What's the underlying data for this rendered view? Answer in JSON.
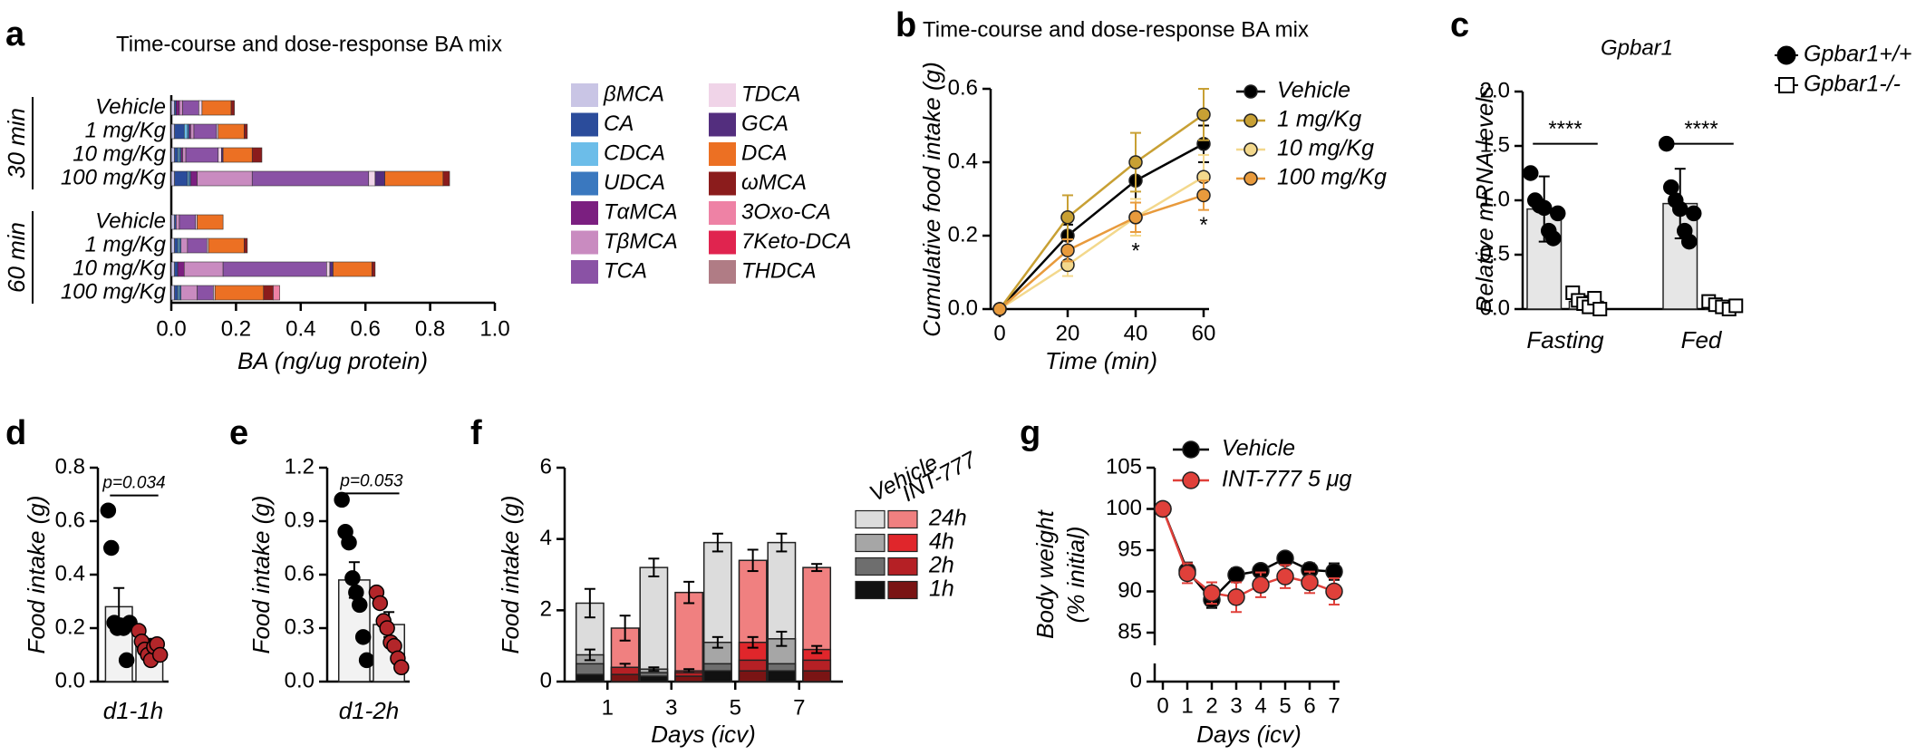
{
  "chart_data": [
    {
      "panel": "a",
      "type": "barh",
      "title": "Time-course and dose-response BA mix",
      "categories": [
        "Vehicle",
        "1 mg/Kg",
        "10 mg/Kg",
        "100 mg/Kg",
        "Vehicle",
        "1 mg/Kg",
        "10 mg/Kg",
        "100 mg/Kg"
      ],
      "groups": [
        "30 min",
        "60 min"
      ],
      "stacked": true,
      "xlabel": "BA (ng/ug protein)",
      "xlim": [
        0,
        1
      ],
      "xticks": [
        {
          "value": 0,
          "label": "0.0"
        },
        0.2,
        0.4,
        0.6,
        0.8,
        {
          "value": 1,
          "label": "1.0"
        }
      ],
      "series": [
        {
          "name": "βMCA",
          "color": "#c9c5e5",
          "values": [
            0.01,
            0.01,
            0.01,
            0.01,
            0.01,
            0.01,
            0.01,
            0.01
          ]
        },
        {
          "name": "CA",
          "color": "#2b4c9b",
          "values": [
            0.005,
            0.03,
            0.01,
            0.04,
            0.005,
            0.01,
            0.01,
            0.01
          ]
        },
        {
          "name": "CDCA",
          "color": "#6cbde9",
          "values": [
            0,
            0.01,
            0.005,
            0.005,
            0,
            0.005,
            0,
            0.005
          ]
        },
        {
          "name": "UDCA",
          "color": "#3a78bf",
          "values": [
            0,
            0.005,
            0.005,
            0.005,
            0,
            0.005,
            0,
            0.005
          ]
        },
        {
          "name": "TαMCA",
          "color": "#7b1f80",
          "values": [
            0.01,
            0.005,
            0.005,
            0.02,
            0,
            0,
            0.02,
            0
          ]
        },
        {
          "name": "TβMCA",
          "color": "#c98bc0",
          "values": [
            0.01,
            0.01,
            0.01,
            0.17,
            0.01,
            0.02,
            0.12,
            0.05
          ]
        },
        {
          "name": "TCA",
          "color": "#8a52a5",
          "values": [
            0.05,
            0.07,
            0.1,
            0.36,
            0.05,
            0.06,
            0.32,
            0.05
          ]
        },
        {
          "name": "TDCA",
          "color": "#f0d4e8",
          "values": [
            0.01,
            0.005,
            0.01,
            0.02,
            0.005,
            0.005,
            0.01,
            0.005
          ]
        },
        {
          "name": "GCA",
          "color": "#532e7e",
          "values": [
            0,
            0,
            0.005,
            0.03,
            0,
            0,
            0.01,
            0
          ]
        },
        {
          "name": "DCA",
          "color": "#ec7023",
          "values": [
            0.09,
            0.08,
            0.09,
            0.18,
            0.08,
            0.11,
            0.12,
            0.15
          ]
        },
        {
          "name": "ωMCA",
          "color": "#8b1c1c",
          "values": [
            0.01,
            0.01,
            0.03,
            0.02,
            0,
            0.01,
            0.01,
            0.03
          ]
        },
        {
          "name": "3Oxo-CA",
          "color": "#ee82a5",
          "values": [
            0,
            0,
            0,
            0,
            0,
            0,
            0,
            0.02
          ]
        },
        {
          "name": "7Keto-DCA",
          "color": "#e0244f",
          "values": [
            0,
            0,
            0,
            0,
            0,
            0,
            0,
            0
          ]
        },
        {
          "name": "THDCA",
          "color": "#b07c85",
          "values": [
            0,
            0,
            0,
            0,
            0,
            0,
            0,
            0
          ]
        }
      ]
    },
    {
      "panel": "b",
      "type": "line",
      "title": "Time-course and dose-response BA mix",
      "xlabel": "Time (min)",
      "ylabel": "Cumulative food intake (g)",
      "x": [
        0,
        20,
        40,
        60
      ],
      "xlim": [
        0,
        60
      ],
      "xticks": [
        0,
        20,
        40,
        60
      ],
      "ylim": [
        0,
        0.6
      ],
      "yticks": [
        {
          "value": 0,
          "label": "0.0"
        },
        0.2,
        0.4,
        0.6
      ],
      "annotations": [
        "*",
        "*"
      ],
      "series": [
        {
          "name": "Vehicle",
          "color": "#000000",
          "values": [
            0,
            0.2,
            0.35,
            0.45
          ],
          "errors": [
            0,
            0.03,
            0.05,
            0.05
          ]
        },
        {
          "name": "1 mg/Kg",
          "color": "#c8a034",
          "values": [
            0,
            0.25,
            0.4,
            0.53
          ],
          "errors": [
            0,
            0.06,
            0.08,
            0.07
          ]
        },
        {
          "name": "10 mg/Kg",
          "color": "#f3d88c",
          "values": [
            0,
            0.12,
            0.25,
            0.36
          ],
          "errors": [
            0,
            0.03,
            0.05,
            0.06
          ]
        },
        {
          "name": "100 mg/Kg",
          "color": "#e89a3c",
          "values": [
            0,
            0.16,
            0.25,
            0.31
          ],
          "errors": [
            0,
            0.03,
            0.04,
            0.04
          ]
        }
      ]
    },
    {
      "panel": "c",
      "type": "bar",
      "title": "Gpbar1",
      "ylabel": "Relative mRNA levels",
      "categories": [
        "Fasting",
        "Fed"
      ],
      "ylim": [
        0,
        2
      ],
      "yticks": [
        {
          "value": 0,
          "label": "0.0"
        },
        0.5,
        {
          "value": 1,
          "label": "1.0"
        },
        1.5,
        {
          "value": 2,
          "label": "2.0"
        }
      ],
      "annotations": [
        "****",
        "****"
      ],
      "series": [
        {
          "name": "Gpbar1+/+",
          "color": "#e6e6e6",
          "marker": "circle",
          "marker_color": "#000000",
          "values": [
            0.92,
            0.97
          ],
          "errors": [
            0.3,
            0.32
          ],
          "points": [
            [
              1.25,
              1.0,
              0.95,
              0.93,
              0.72,
              0.65,
              0.88
            ],
            [
              1.52,
              1.12,
              1.0,
              0.92,
              0.72,
              0.62,
              0.88
            ]
          ]
        },
        {
          "name": "Gpbar1-/-",
          "color": "#ffffff",
          "marker": "square",
          "marker_color": "#ffffff",
          "values": [
            0.07,
            0.03
          ],
          "errors": [
            0.05,
            0.02
          ],
          "points": [
            [
              0.15,
              0.08,
              0.05,
              0.02,
              0.1,
              0.0
            ],
            [
              0.07,
              0.04,
              0.02,
              0.0,
              0.03
            ]
          ]
        }
      ]
    },
    {
      "panel": "d",
      "type": "bar",
      "xlabel": "d1-1h",
      "ylabel": "Food intake (g)",
      "ylim": [
        0,
        0.8
      ],
      "yticks": [
        {
          "value": 0,
          "label": "0.0"
        },
        0.2,
        0.4,
        0.6,
        0.8
      ],
      "annotations": [
        "p=0.034"
      ],
      "series": [
        {
          "color": "#f2f2f2",
          "marker": "circle",
          "marker_color": "#000000",
          "values": [
            0.28
          ],
          "errors": [
            0.07
          ],
          "points": [
            [
              0.64,
              0.5,
              0.22,
              0.2,
              0.21,
              0.2,
              0.08,
              0.22
            ]
          ]
        },
        {
          "color": "#f2f2f2",
          "marker": "circle",
          "marker_color": "#b3262a",
          "values": [
            0.14
          ],
          "errors": [
            0.02
          ],
          "points": [
            [
              0.19,
              0.15,
              0.12,
              0.1,
              0.08,
              0.13,
              0.14,
              0.1
            ]
          ]
        }
      ]
    },
    {
      "panel": "e",
      "type": "bar",
      "xlabel": "d1-2h",
      "ylabel": "Food intake (g)",
      "ylim": [
        0,
        1.2
      ],
      "yticks": [
        {
          "value": 0,
          "label": "0.0"
        },
        0.3,
        0.6,
        0.9,
        1.2
      ],
      "annotations": [
        "p=0.053"
      ],
      "series": [
        {
          "color": "#f2f2f2",
          "marker": "circle",
          "marker_color": "#000000",
          "values": [
            0.57
          ],
          "errors": [
            0.1
          ],
          "points": [
            [
              1.02,
              0.84,
              0.78,
              0.58,
              0.5,
              0.43,
              0.25,
              0.12
            ]
          ]
        },
        {
          "color": "#f2f2f2",
          "marker": "circle",
          "marker_color": "#b3262a",
          "values": [
            0.32
          ],
          "errors": [
            0.07
          ],
          "points": [
            [
              0.5,
              0.44,
              0.34,
              0.3,
              0.22,
              0.2,
              0.13,
              0.08
            ]
          ]
        }
      ]
    },
    {
      "panel": "f",
      "type": "bar",
      "xlabel": "Days (icv)",
      "ylabel": "Food intake (g)",
      "categories": [
        "1",
        "3",
        "5",
        "7"
      ],
      "ylim": [
        0,
        6
      ],
      "yticks": [
        0,
        2,
        4,
        6
      ],
      "layer_names": [
        "24h",
        "4h",
        "2h",
        "1h"
      ],
      "series": [
        {
          "name": "Vehicle",
          "layers": [
            {
              "color": "#dcdcdc",
              "values": [
                2.2,
                3.2,
                3.9,
                3.9
              ],
              "errors": [
                0.4,
                0.25,
                0.25,
                0.25
              ]
            },
            {
              "color": "#a6a6a6",
              "values": [
                0.75,
                0.35,
                1.1,
                1.2
              ],
              "errors": [
                0.15,
                0.05,
                0.15,
                0.2
              ]
            },
            {
              "color": "#6e6e6e",
              "values": [
                0.5,
                0.25,
                0.5,
                0.5
              ]
            },
            {
              "color": "#111111",
              "values": [
                0.2,
                0.15,
                0.3,
                0.3
              ]
            }
          ]
        },
        {
          "name": "INT-777",
          "layers": [
            {
              "color": "#f08080",
              "values": [
                1.5,
                2.5,
                3.4,
                3.2
              ],
              "errors": [
                0.35,
                0.3,
                0.3,
                0.1
              ]
            },
            {
              "color": "#e0262b",
              "values": [
                0.4,
                0.3,
                1.1,
                0.9
              ],
              "errors": [
                0.1,
                0.05,
                0.15,
                0.1
              ]
            },
            {
              "color": "#b52025",
              "values": [
                0.4,
                0.25,
                0.6,
                0.6
              ]
            },
            {
              "color": "#7a1414",
              "values": [
                0.2,
                0.15,
                0.3,
                0.3
              ]
            }
          ]
        }
      ]
    },
    {
      "panel": "g",
      "type": "line",
      "xlabel": "Days (icv)",
      "ylabel": [
        "Body weight",
        "(% initial)"
      ],
      "x": [
        0,
        1,
        2,
        3,
        4,
        5,
        6,
        7
      ],
      "xlim": [
        0,
        7
      ],
      "xticks": [
        0,
        1,
        2,
        3,
        4,
        5,
        6,
        7
      ],
      "ylim": [
        85,
        105
      ],
      "yticks": [
        0,
        85,
        90,
        95,
        100,
        105
      ],
      "axis_break": true,
      "series": [
        {
          "name": "Vehicle",
          "color": "#000000",
          "values": [
            100,
            92.5,
            89,
            92,
            92.5,
            94,
            92.6,
            92.4
          ],
          "errors": [
            0,
            1,
            1,
            0.8,
            0.6,
            0.5,
            0.8,
            1
          ]
        },
        {
          "name": "INT-777 5 μg",
          "color": "#e0403a",
          "values": [
            100,
            92.2,
            89.8,
            89.3,
            90.8,
            91.8,
            91.1,
            90
          ],
          "errors": [
            0,
            1.2,
            1.3,
            1.8,
            1.5,
            1.4,
            1.3,
            1.6
          ]
        }
      ]
    }
  ]
}
